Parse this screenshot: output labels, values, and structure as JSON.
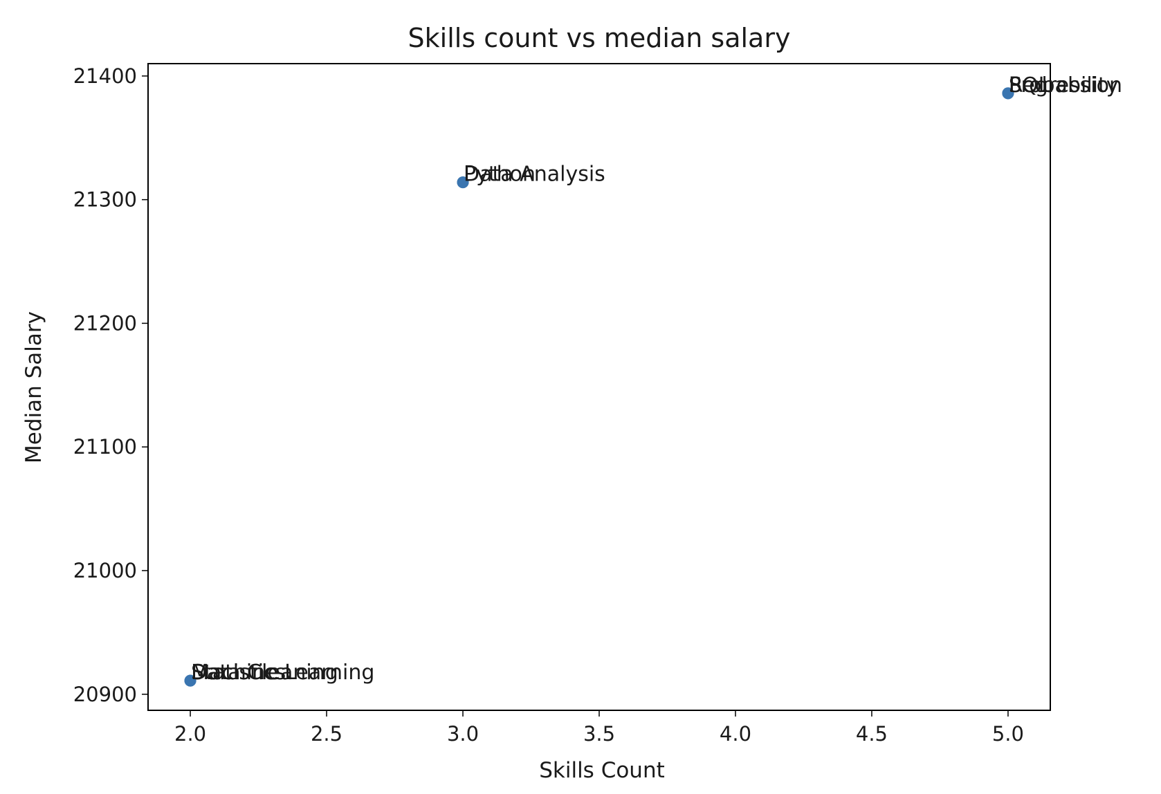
{
  "chart_data": {
    "type": "scatter",
    "title": "Skills count vs median salary",
    "xlabel": "Skills Count",
    "ylabel": "Median Salary",
    "xlim": [
      1.845,
      5.155
    ],
    "ylim": [
      20887,
      21410
    ],
    "xticks": [
      2.0,
      2.5,
      3.0,
      3.5,
      4.0,
      4.5,
      5.0
    ],
    "yticks": [
      20900,
      21000,
      21100,
      21200,
      21300,
      21400
    ],
    "xtick_labels": [
      "2.0",
      "2.5",
      "3.0",
      "3.5",
      "4.0",
      "4.5",
      "5.0"
    ],
    "ytick_labels": [
      "20900",
      "21000",
      "21100",
      "21200",
      "21300",
      "21400"
    ],
    "grid": false,
    "marker_color": "#3a75b0",
    "points": [
      {
        "x": 2,
        "y": 20911,
        "label": "Machine Learning"
      },
      {
        "x": 2,
        "y": 20911,
        "label": "Statistics"
      },
      {
        "x": 2,
        "y": 20911,
        "label": "Data Cleaning"
      },
      {
        "x": 3,
        "y": 21314,
        "label": "Data Analysis"
      },
      {
        "x": 3,
        "y": 21314,
        "label": "Python"
      },
      {
        "x": 5,
        "y": 21386,
        "label": "Regression"
      },
      {
        "x": 5,
        "y": 21386,
        "label": "Probability"
      },
      {
        "x": 5,
        "y": 21386,
        "label": "SQL"
      }
    ]
  }
}
